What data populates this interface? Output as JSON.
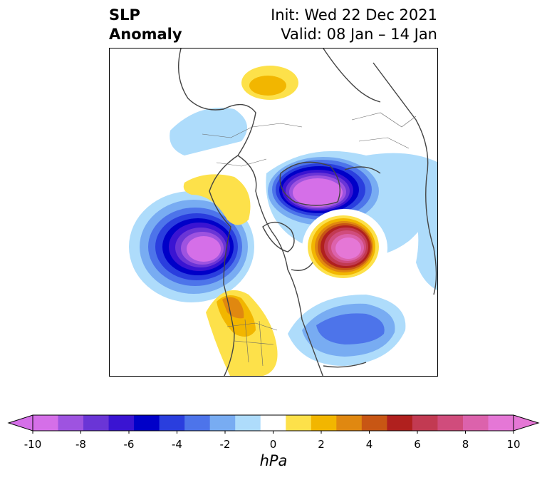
{
  "title": {
    "variable": "SLP",
    "kind": "Anomaly",
    "init": "Init: Wed 22 Dec 2021",
    "valid": "Valid: 08 Jan – 14 Jan"
  },
  "colorbar": {
    "unit": "hPa",
    "ticks": [
      "-10",
      "-8",
      "-6",
      "-4",
      "-2",
      "0",
      "2",
      "4",
      "6",
      "8",
      "10"
    ],
    "bins": [
      {
        "range": "-10 to -9",
        "color": "#d56fe8"
      },
      {
        "range": "-9 to -8",
        "color": "#9e53e0"
      },
      {
        "range": "-8 to -7",
        "color": "#6a35d6"
      },
      {
        "range": "-7 to -6",
        "color": "#3a14d2"
      },
      {
        "range": "-6 to -5",
        "color": "#0000c8"
      },
      {
        "range": "-5 to -4",
        "color": "#2a3ede"
      },
      {
        "range": "-4 to -3",
        "color": "#4d74ea"
      },
      {
        "range": "-3 to -2",
        "color": "#78acf2"
      },
      {
        "range": "-2 to -1",
        "color": "#aedcfb"
      },
      {
        "range": "-1 to 1",
        "color": "#ffffff"
      },
      {
        "range": "1 to 2",
        "color": "#fde14a"
      },
      {
        "range": "2 to 3",
        "color": "#f2b600"
      },
      {
        "range": "3 to 4",
        "color": "#e08810"
      },
      {
        "range": "4 to 5",
        "color": "#c85614"
      },
      {
        "range": "5 to 6",
        "color": "#b0201e"
      },
      {
        "range": "6 to 7",
        "color": "#c23a52"
      },
      {
        "range": "7 to 8",
        "color": "#d04c7c"
      },
      {
        "range": "8 to 9",
        "color": "#dc62ac"
      },
      {
        "range": "9 to 10",
        "color": "#e577d6"
      }
    ]
  },
  "anomaly_centers": [
    {
      "name": "east-pacific-low",
      "sign": "negative",
      "peak": -10
    },
    {
      "name": "arctic-low",
      "sign": "negative",
      "peak": -10
    },
    {
      "name": "north-atlantic-high",
      "sign": "positive",
      "peak": 10
    },
    {
      "name": "western-us-high",
      "sign": "positive",
      "peak": 3
    },
    {
      "name": "alaska-high",
      "sign": "positive",
      "peak": 2
    },
    {
      "name": "asia-high",
      "sign": "positive",
      "peak": 2
    },
    {
      "name": "west-atlantic-low",
      "sign": "negative",
      "peak": -5
    }
  ]
}
